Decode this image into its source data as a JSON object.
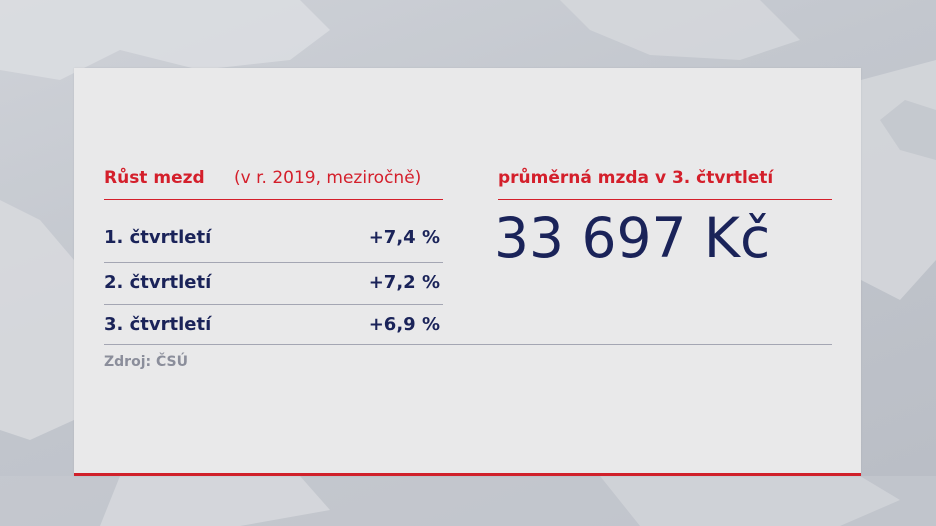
{
  "left_panel": {
    "title": "Růst mezd",
    "subtitle": "(v r. 2019, meziročně)",
    "rows": [
      {
        "label": "1. čtvrtletí",
        "value": "+7,4 %"
      },
      {
        "label": "2. čtvrtletí",
        "value": "+7,2 %"
      },
      {
        "label": "3. čtvrtletí",
        "value": "+6,9 %"
      }
    ]
  },
  "right_panel": {
    "title": "průměrná mzda v 3. čtvrtletí",
    "value": "33 697 Kč"
  },
  "source": "Zdroj: ČSÚ",
  "colors": {
    "accent_red": "#d41f2b",
    "navy": "#1a2359",
    "gray_text": "#8b8e9b",
    "card_bg": "#e9e9ea"
  }
}
